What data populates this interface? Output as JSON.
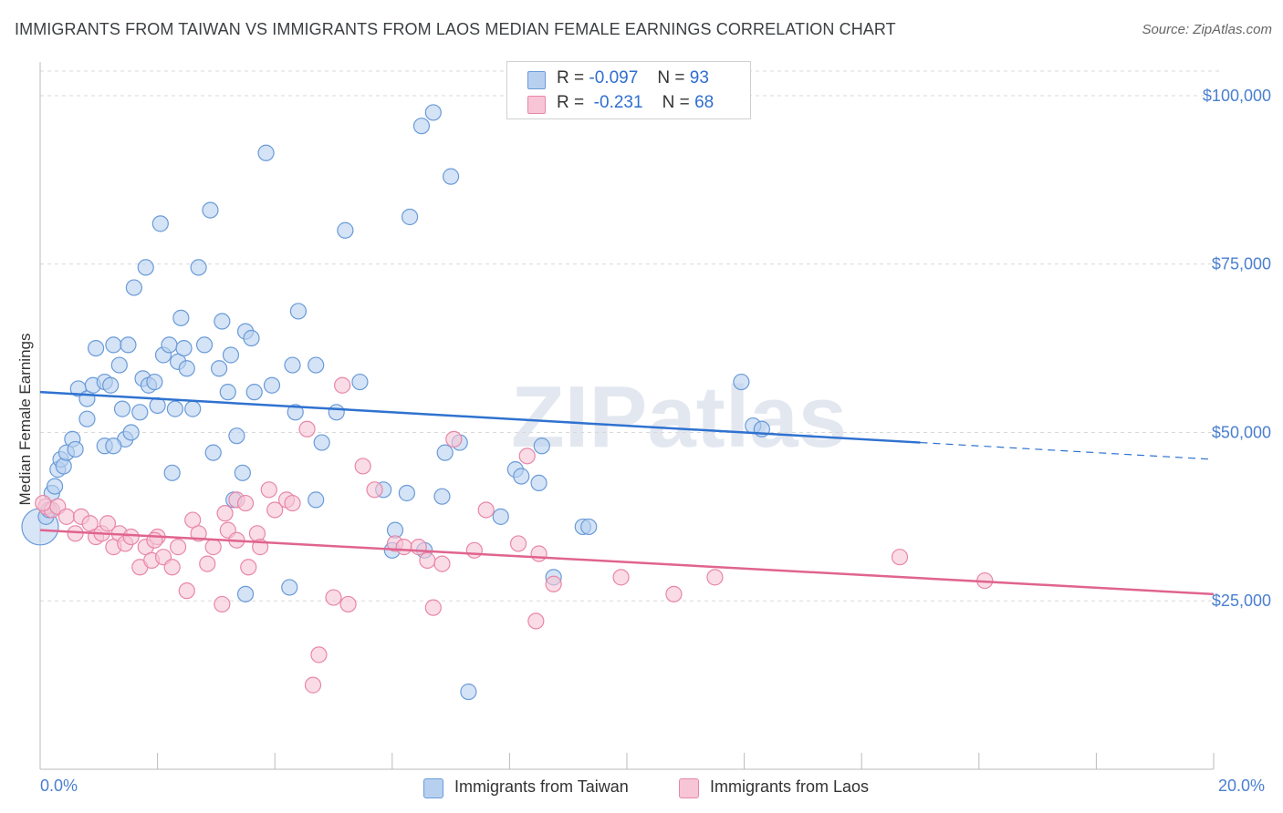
{
  "title": "IMMIGRANTS FROM TAIWAN VS IMMIGRANTS FROM LAOS MEDIAN FEMALE EARNINGS CORRELATION CHART",
  "source": "Source: ZipAtlas.com",
  "watermark": "ZIPatlas",
  "colors": {
    "taiwan_fill": "#b8d0f0",
    "taiwan_stroke": "#6a9bd8",
    "taiwan_line": "#2f72d0",
    "laos_fill": "#f7c5d6",
    "laos_stroke": "#e887a8",
    "laos_line": "#e0648e",
    "tick_label": "#4a7fd0",
    "grid": "#d9d9d9"
  },
  "legend": {
    "rows": [
      {
        "r_label": "R =",
        "r_value": "-0.097",
        "n_label": "N =",
        "n_value": "93"
      },
      {
        "r_label": "R =",
        "r_value": "-0.231",
        "n_label": "N =",
        "n_value": "68"
      }
    ]
  },
  "chart_data": {
    "type": "scatter",
    "ylabel": "Median Female Earnings",
    "xlim": [
      0,
      20
    ],
    "ylim": [
      0,
      105000
    ],
    "x_tick_labels": [
      "0.0%",
      "20.0%"
    ],
    "y_ticks": [
      25000,
      50000,
      75000,
      100000
    ],
    "y_tick_labels": [
      "$25,000",
      "$50,000",
      "$75,000",
      "$100,000"
    ],
    "grid": true,
    "legend_position": "top-center",
    "series": [
      {
        "name": "Immigrants from Taiwan",
        "trend": {
          "x": [
            0,
            15
          ],
          "y": [
            56000,
            48500
          ],
          "dashed_to": [
            20,
            46000
          ]
        },
        "points": [
          [
            0.1,
            37500
          ],
          [
            0.2,
            41000
          ],
          [
            0.25,
            42000
          ],
          [
            0.3,
            44500
          ],
          [
            0.35,
            46000
          ],
          [
            0.4,
            45000
          ],
          [
            0.45,
            47000
          ],
          [
            0.55,
            49000
          ],
          [
            0.6,
            47500
          ],
          [
            0.65,
            56500
          ],
          [
            0.8,
            55000
          ],
          [
            0.8,
            52000
          ],
          [
            0.9,
            57000
          ],
          [
            0.95,
            62500
          ],
          [
            1.1,
            57500
          ],
          [
            1.1,
            48000
          ],
          [
            1.2,
            57000
          ],
          [
            1.25,
            63000
          ],
          [
            1.35,
            60000
          ],
          [
            1.4,
            53500
          ],
          [
            1.45,
            49000
          ],
          [
            1.5,
            63000
          ],
          [
            1.55,
            50000
          ],
          [
            1.6,
            71500
          ],
          [
            1.7,
            53000
          ],
          [
            1.75,
            58000
          ],
          [
            1.8,
            74500
          ],
          [
            1.85,
            57000
          ],
          [
            1.95,
            57500
          ],
          [
            2.0,
            54000
          ],
          [
            2.05,
            81000
          ],
          [
            2.1,
            61500
          ],
          [
            2.2,
            63000
          ],
          [
            2.25,
            44000
          ],
          [
            2.3,
            53500
          ],
          [
            2.35,
            60500
          ],
          [
            2.4,
            67000
          ],
          [
            2.45,
            62500
          ],
          [
            2.5,
            59500
          ],
          [
            2.6,
            53500
          ],
          [
            2.7,
            74500
          ],
          [
            2.8,
            63000
          ],
          [
            2.9,
            83000
          ],
          [
            2.95,
            47000
          ],
          [
            3.05,
            59500
          ],
          [
            3.1,
            66500
          ],
          [
            3.2,
            56000
          ],
          [
            3.25,
            61500
          ],
          [
            3.3,
            40000
          ],
          [
            3.35,
            49500
          ],
          [
            3.45,
            44000
          ],
          [
            3.5,
            26000
          ],
          [
            3.5,
            65000
          ],
          [
            3.6,
            64000
          ],
          [
            3.65,
            56000
          ],
          [
            3.85,
            91500
          ],
          [
            3.95,
            57000
          ],
          [
            4.25,
            27000
          ],
          [
            4.3,
            60000
          ],
          [
            4.35,
            53000
          ],
          [
            4.4,
            68000
          ],
          [
            4.7,
            60000
          ],
          [
            4.8,
            48500
          ],
          [
            5.05,
            53000
          ],
          [
            5.2,
            80000
          ],
          [
            5.45,
            57500
          ],
          [
            5.85,
            41500
          ],
          [
            6.05,
            35500
          ],
          [
            6.25,
            41000
          ],
          [
            6.3,
            82000
          ],
          [
            6.5,
            95500
          ],
          [
            6.55,
            32500
          ],
          [
            6.7,
            97500
          ],
          [
            6.85,
            40500
          ],
          [
            6.9,
            47000
          ],
          [
            7.0,
            88000
          ],
          [
            7.15,
            48500
          ],
          [
            7.3,
            11500
          ],
          [
            7.85,
            37500
          ],
          [
            8.1,
            44500
          ],
          [
            8.2,
            43500
          ],
          [
            8.5,
            42500
          ],
          [
            8.55,
            48000
          ],
          [
            8.75,
            28500
          ],
          [
            9.25,
            36000
          ],
          [
            9.35,
            36000
          ],
          [
            11.95,
            57500
          ],
          [
            12.15,
            51000
          ],
          [
            12.3,
            50500
          ],
          [
            1.25,
            48000
          ],
          [
            4.7,
            40000
          ],
          [
            0.15,
            38500
          ],
          [
            6.0,
            32500
          ]
        ]
      },
      {
        "name": "Immigrants from Laos",
        "trend": {
          "x": [
            0,
            20
          ],
          "y": [
            35500,
            26000
          ]
        },
        "points": [
          [
            0.1,
            39000
          ],
          [
            0.2,
            38500
          ],
          [
            0.3,
            39000
          ],
          [
            0.45,
            37500
          ],
          [
            0.6,
            35000
          ],
          [
            0.7,
            37500
          ],
          [
            0.85,
            36500
          ],
          [
            0.95,
            34500
          ],
          [
            1.05,
            35000
          ],
          [
            1.15,
            36500
          ],
          [
            1.25,
            33000
          ],
          [
            1.35,
            35000
          ],
          [
            1.45,
            33500
          ],
          [
            1.55,
            34500
          ],
          [
            1.7,
            30000
          ],
          [
            1.8,
            33000
          ],
          [
            1.9,
            31000
          ],
          [
            2.0,
            34500
          ],
          [
            2.1,
            31500
          ],
          [
            2.25,
            30000
          ],
          [
            2.35,
            33000
          ],
          [
            2.5,
            26500
          ],
          [
            2.6,
            37000
          ],
          [
            2.7,
            35000
          ],
          [
            2.85,
            30500
          ],
          [
            2.95,
            33000
          ],
          [
            3.1,
            24500
          ],
          [
            3.15,
            38000
          ],
          [
            3.2,
            35500
          ],
          [
            3.35,
            40000
          ],
          [
            3.5,
            39500
          ],
          [
            3.55,
            30000
          ],
          [
            3.7,
            35000
          ],
          [
            3.75,
            33000
          ],
          [
            3.9,
            41500
          ],
          [
            4.0,
            38500
          ],
          [
            4.2,
            40000
          ],
          [
            4.3,
            39500
          ],
          [
            4.55,
            50500
          ],
          [
            4.65,
            12500
          ],
          [
            4.75,
            17000
          ],
          [
            5.0,
            25500
          ],
          [
            5.15,
            57000
          ],
          [
            5.25,
            24500
          ],
          [
            5.5,
            45000
          ],
          [
            5.7,
            41500
          ],
          [
            6.05,
            33500
          ],
          [
            6.2,
            33000
          ],
          [
            6.45,
            33000
          ],
          [
            6.6,
            31000
          ],
          [
            6.7,
            24000
          ],
          [
            6.85,
            30500
          ],
          [
            7.05,
            49000
          ],
          [
            7.4,
            32500
          ],
          [
            7.6,
            38500
          ],
          [
            8.15,
            33500
          ],
          [
            8.3,
            46500
          ],
          [
            8.45,
            22000
          ],
          [
            8.5,
            32000
          ],
          [
            8.75,
            27500
          ],
          [
            9.9,
            28500
          ],
          [
            10.8,
            26000
          ],
          [
            11.5,
            28500
          ],
          [
            14.65,
            31500
          ],
          [
            16.1,
            28000
          ],
          [
            3.35,
            34000
          ],
          [
            1.95,
            34000
          ],
          [
            0.05,
            39500
          ]
        ]
      }
    ]
  },
  "bottom_legend": [
    "Immigrants from Taiwan",
    "Immigrants from Laos"
  ]
}
